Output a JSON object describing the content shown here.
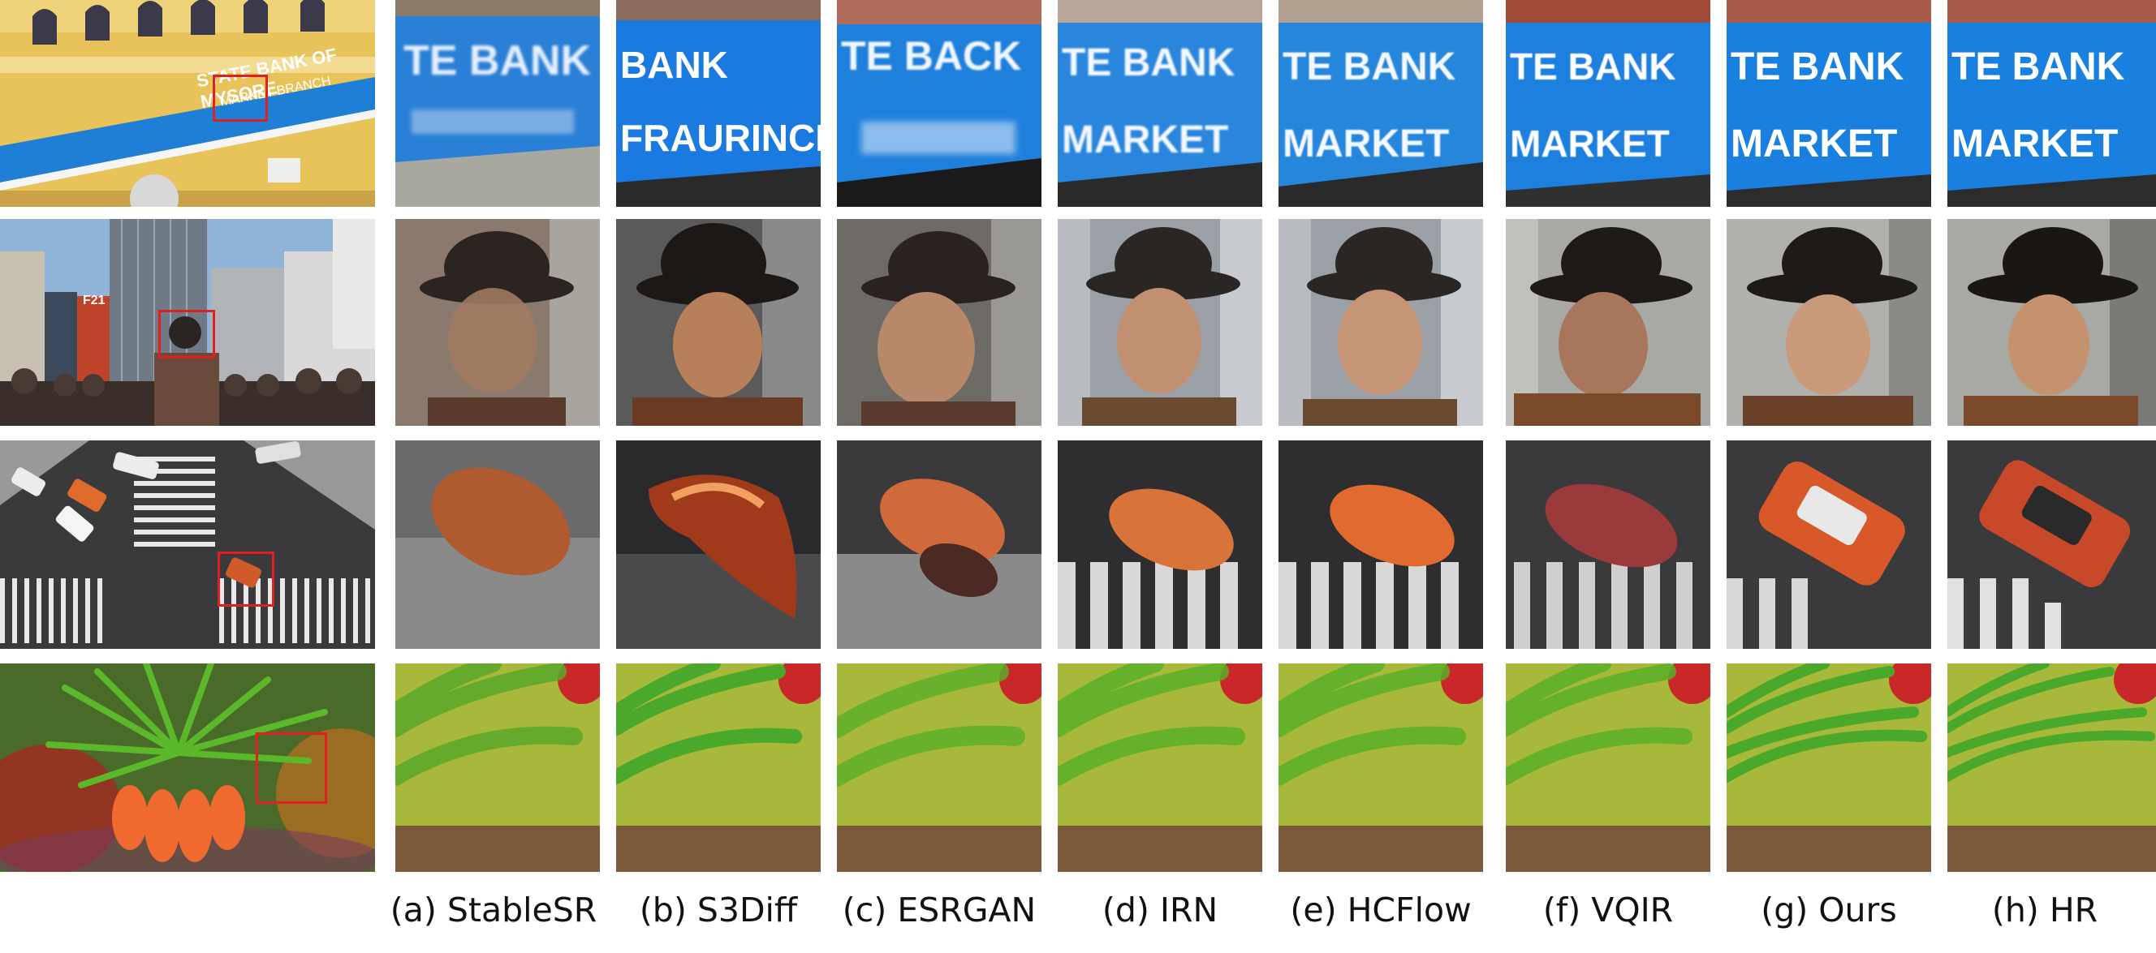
{
  "figure": {
    "columns": [
      {
        "id": "stablesr",
        "label": "(a) StableSR"
      },
      {
        "id": "s3diff",
        "label": "(b) S3Diff"
      },
      {
        "id": "esrgan",
        "label": "(c) ESRGAN"
      },
      {
        "id": "irn",
        "label": "(d) IRN"
      },
      {
        "id": "hcflow",
        "label": "(e) HCFlow"
      },
      {
        "id": "vqir",
        "label": "(f) VQIR"
      },
      {
        "id": "ours",
        "label": "(g) Ours"
      },
      {
        "id": "hr",
        "label": "(h) HR"
      }
    ],
    "rows": [
      {
        "id": "bank",
        "overview_sign_text": "STATE BANK OF MYSORE",
        "overview_sign_subtext": "MARKET BRANCH",
        "crop_text": [
          "TE BANK",
          "BANK FRAURINCET",
          "TE BACK",
          "TE BANK MARKET",
          "TE BANK MARKET",
          "TE BANK MARKET",
          "TE BANK MARKET",
          "TE BANK MARKET"
        ]
      },
      {
        "id": "street",
        "overview_billboard": "F21"
      },
      {
        "id": "crosswalk"
      },
      {
        "id": "flower"
      }
    ],
    "colors": {
      "highlight_box": "#e02020",
      "sign_blue": "#1f7fd6"
    }
  }
}
